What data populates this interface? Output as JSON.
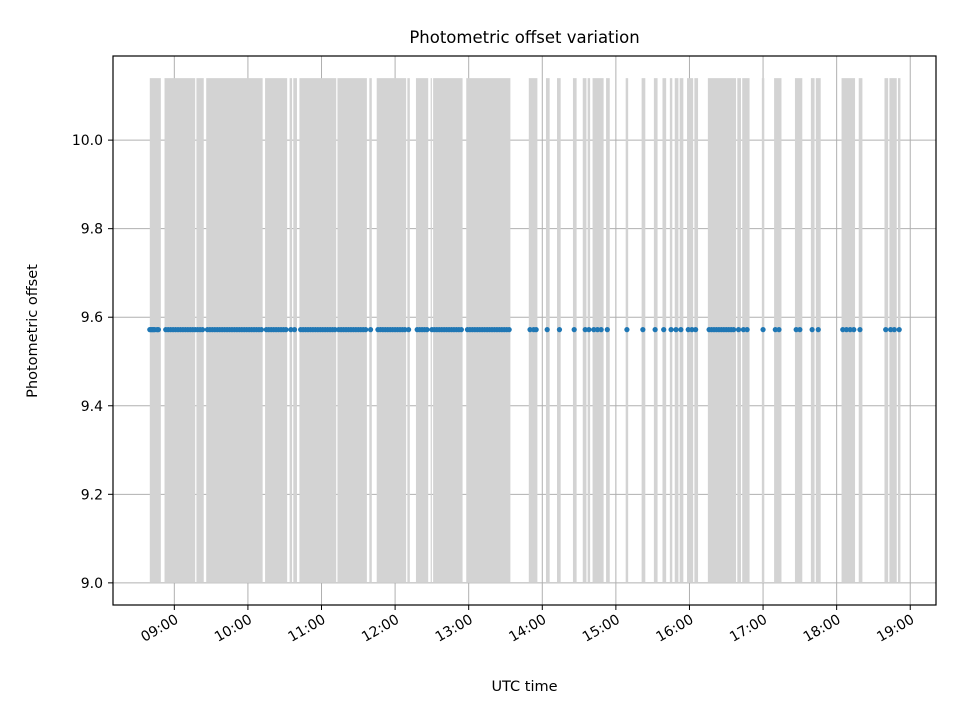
{
  "chart_data": {
    "type": "scatter",
    "title": "Photometric offset variation",
    "xlabel": "UTC time",
    "ylabel": "Photometric offset",
    "x_tick_labels": [
      "09:00",
      "10:00",
      "11:00",
      "12:00",
      "13:00",
      "14:00",
      "15:00",
      "16:00",
      "17:00",
      "18:00",
      "19:00"
    ],
    "y_tick_labels": [
      "9.0",
      "9.2",
      "9.4",
      "9.6",
      "9.8",
      "10.0"
    ],
    "y_ticks": [
      9.0,
      9.2,
      9.4,
      9.6,
      9.8,
      10.0
    ],
    "xlim": [
      "08:10",
      "19:21"
    ],
    "ylim": [
      8.95,
      10.19
    ],
    "grid": true,
    "colors": {
      "points": "#1f77b4",
      "spans": "#d3d3d3",
      "grid": "#b0b0b0"
    },
    "shaded_spans": {
      "y_range": [
        9.0,
        10.14
      ],
      "intervals": [
        [
          "08:40",
          "08:49"
        ],
        [
          "08:52",
          "09:17"
        ],
        [
          "09:18",
          "09:24"
        ],
        [
          "09:26",
          "10:12"
        ],
        [
          "10:14",
          "10:32"
        ],
        [
          "10:34",
          "10:36"
        ],
        [
          "10:37",
          "10:40"
        ],
        [
          "10:42",
          "11:12"
        ],
        [
          "11:13",
          "11:37"
        ],
        [
          "11:39",
          "11:41"
        ],
        [
          "11:45",
          "12:09"
        ],
        [
          "12:10",
          "12:12"
        ],
        [
          "12:17",
          "12:27"
        ],
        [
          "12:29",
          "12:30"
        ],
        [
          "12:31",
          "12:55"
        ],
        [
          "12:58",
          "13:34"
        ],
        [
          "13:49",
          "13:56"
        ],
        [
          "14:03",
          "14:06"
        ],
        [
          "14:12",
          "14:15"
        ],
        [
          "14:25",
          "14:28"
        ],
        [
          "14:33",
          "14:36"
        ],
        [
          "14:37",
          "14:39"
        ],
        [
          "14:41",
          "14:50"
        ],
        [
          "14:52",
          "14:55"
        ],
        [
          "15:08",
          "15:10"
        ],
        [
          "15:21",
          "15:24"
        ],
        [
          "15:31",
          "15:34"
        ],
        [
          "15:38",
          "15:41"
        ],
        [
          "15:44",
          "15:46"
        ],
        [
          "15:48",
          "15:51"
        ],
        [
          "15:52",
          "15:55"
        ],
        [
          "15:58",
          "16:03"
        ],
        [
          "16:04",
          "16:07"
        ],
        [
          "16:15",
          "16:38"
        ],
        [
          "16:39",
          "16:42"
        ],
        [
          "16:43",
          "16:49"
        ],
        [
          "16:59",
          "17:01"
        ],
        [
          "17:09",
          "17:15"
        ],
        [
          "17:26",
          "17:32"
        ],
        [
          "17:39",
          "17:42"
        ],
        [
          "17:43",
          "17:47"
        ],
        [
          "18:04",
          "18:15"
        ],
        [
          "18:18",
          "18:21"
        ],
        [
          "18:39",
          "18:42"
        ],
        [
          "18:43",
          "18:49"
        ],
        [
          "18:50",
          "18:52"
        ]
      ]
    },
    "series": [
      {
        "y_value": 9.572,
        "x": [
          "08:40",
          "08:41",
          "08:42",
          "08:43",
          "08:44",
          "08:46",
          "08:47",
          "08:53",
          "08:55",
          "08:57",
          "08:59",
          "09:01",
          "09:03",
          "09:05",
          "09:07",
          "09:09",
          "09:11",
          "09:13",
          "09:15",
          "09:17",
          "09:19",
          "09:21",
          "09:23",
          "09:27",
          "09:29",
          "09:31",
          "09:33",
          "09:35",
          "09:37",
          "09:39",
          "09:41",
          "09:43",
          "09:45",
          "09:47",
          "09:49",
          "09:51",
          "09:53",
          "09:55",
          "09:57",
          "09:59",
          "10:01",
          "10:03",
          "10:05",
          "10:07",
          "10:09",
          "10:11",
          "10:15",
          "10:17",
          "10:19",
          "10:21",
          "10:23",
          "10:25",
          "10:27",
          "10:29",
          "10:31",
          "10:35",
          "10:38",
          "10:43",
          "10:45",
          "10:47",
          "10:49",
          "10:51",
          "10:53",
          "10:55",
          "10:57",
          "10:59",
          "11:01",
          "11:03",
          "11:05",
          "11:07",
          "11:09",
          "11:11",
          "11:14",
          "11:16",
          "11:18",
          "11:20",
          "11:22",
          "11:24",
          "11:26",
          "11:28",
          "11:30",
          "11:32",
          "11:34",
          "11:36",
          "11:40",
          "11:46",
          "11:48",
          "11:50",
          "11:52",
          "11:54",
          "11:56",
          "11:58",
          "12:00",
          "12:02",
          "12:04",
          "12:06",
          "12:08",
          "12:11",
          "12:18",
          "12:20",
          "12:22",
          "12:24",
          "12:26",
          "12:30",
          "12:32",
          "12:34",
          "12:36",
          "12:38",
          "12:40",
          "12:42",
          "12:44",
          "12:46",
          "12:48",
          "12:50",
          "12:52",
          "12:54",
          "12:59",
          "13:01",
          "13:03",
          "13:05",
          "13:07",
          "13:09",
          "13:11",
          "13:13",
          "13:15",
          "13:17",
          "13:19",
          "13:21",
          "13:23",
          "13:25",
          "13:27",
          "13:29",
          "13:31",
          "13:33",
          "13:50",
          "13:53",
          "13:55",
          "14:04",
          "14:14",
          "14:26",
          "14:35",
          "14:38",
          "14:42",
          "14:45",
          "14:48",
          "14:53",
          "15:09",
          "15:22",
          "15:32",
          "15:39",
          "15:45",
          "15:49",
          "15:53",
          "15:59",
          "16:02",
          "16:05",
          "16:16",
          "16:18",
          "16:20",
          "16:22",
          "16:24",
          "16:26",
          "16:28",
          "16:30",
          "16:32",
          "16:34",
          "16:36",
          "16:40",
          "16:44",
          "16:47",
          "17:00",
          "17:10",
          "17:13",
          "17:27",
          "17:30",
          "17:40",
          "17:45",
          "18:05",
          "18:08",
          "18:11",
          "18:14",
          "18:19",
          "18:40",
          "18:44",
          "18:47",
          "18:51"
        ]
      }
    ]
  }
}
